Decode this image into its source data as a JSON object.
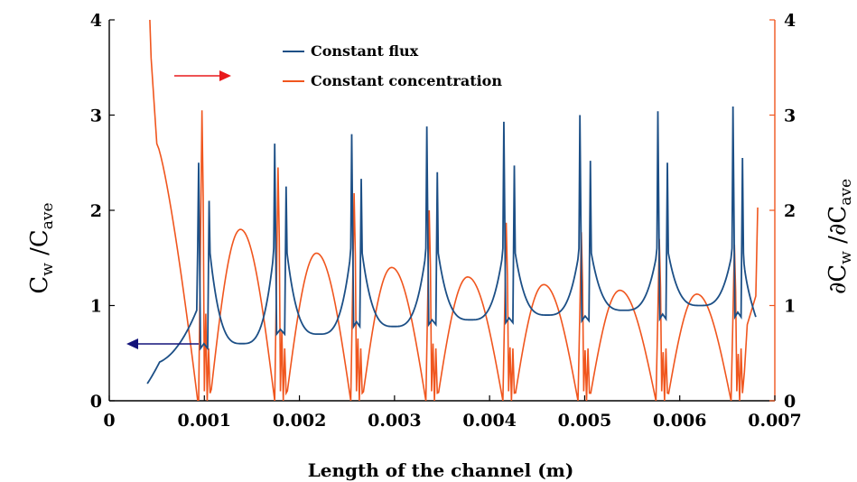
{
  "chart_data": {
    "type": "line",
    "xlabel": "Length of the channel (m)",
    "ylabel_left": {
      "main": "C",
      "sub1": "w",
      "mid": " /C",
      "sub2": "ave"
    },
    "ylabel_right": {
      "main": "∂C",
      "sub1": "w",
      "mid": " /∂C",
      "sub2": "ave"
    },
    "xlim": [
      0,
      0.007
    ],
    "ylim_left": [
      0,
      4
    ],
    "ylim_right": [
      0,
      4
    ],
    "x_ticks": [
      "0",
      "0.001",
      "0.002",
      "0.003",
      "0.004",
      "0.005",
      "0.006",
      "0.007"
    ],
    "y_ticks_left": [
      "0",
      "1",
      "2",
      "3",
      "4"
    ],
    "y_ticks_right": [
      "0",
      "1",
      "2",
      "3",
      "4"
    ],
    "grid": false,
    "legend_position": "top-center",
    "series": [
      {
        "name": "Constant flux",
        "axis": "left",
        "color": "#1c4f86",
        "x_start": 0.0004,
        "x_end": 0.0068,
        "start_value": 0.18,
        "cell_peaks": [
          {
            "x_left": 0.00094,
            "x_right": 0.00105,
            "peak_left": 2.5,
            "peak_right": 2.1,
            "min_between": 0.55
          },
          {
            "x_left": 0.00174,
            "x_right": 0.00186,
            "peak_left": 2.7,
            "peak_right": 2.25,
            "min_between": 0.7
          },
          {
            "x_left": 0.00255,
            "x_right": 0.00265,
            "peak_left": 2.8,
            "peak_right": 2.33,
            "min_between": 0.78
          },
          {
            "x_left": 0.00334,
            "x_right": 0.00345,
            "peak_left": 2.88,
            "peak_right": 2.4,
            "min_between": 0.8
          },
          {
            "x_left": 0.00415,
            "x_right": 0.00426,
            "peak_left": 2.93,
            "peak_right": 2.47,
            "min_between": 0.82
          },
          {
            "x_left": 0.00495,
            "x_right": 0.00506,
            "peak_left": 3.0,
            "peak_right": 2.52,
            "min_between": 0.84
          },
          {
            "x_left": 0.00577,
            "x_right": 0.00587,
            "peak_left": 3.04,
            "peak_right": 2.5,
            "min_between": 0.86
          },
          {
            "x_left": 0.00656,
            "x_right": 0.00666,
            "peak_left": 3.09,
            "peak_right": 2.55,
            "min_between": 0.88
          }
        ],
        "valley_minima": [
          0.6,
          0.7,
          0.78,
          0.85,
          0.9,
          0.95,
          1.0
        ],
        "end_value": 0.88
      },
      {
        "name": "Constant concentration",
        "axis": "right",
        "color": "#f0561e",
        "x_start": 0.00042,
        "x_end": 0.00682,
        "start_value": 4.0,
        "cell_peaks": [
          {
            "x": 0.00098,
            "peak": 3.05
          },
          {
            "x": 0.00178,
            "peak": 2.45
          },
          {
            "x": 0.00258,
            "peak": 2.18
          },
          {
            "x": 0.00337,
            "peak": 2.0
          },
          {
            "x": 0.00418,
            "peak": 1.87
          },
          {
            "x": 0.00497,
            "peak": 1.77
          },
          {
            "x": 0.00579,
            "peak": 1.7
          },
          {
            "x": 0.00658,
            "peak": 1.64
          }
        ],
        "valley_maxima": [
          {
            "x": 0.00138,
            "y": 1.8
          },
          {
            "x": 0.00218,
            "y": 1.55
          },
          {
            "x": 0.00297,
            "y": 1.4
          },
          {
            "x": 0.00377,
            "y": 1.3
          },
          {
            "x": 0.00457,
            "y": 1.22
          },
          {
            "x": 0.00537,
            "y": 1.16
          },
          {
            "x": 0.00618,
            "y": 1.12
          }
        ],
        "end_value": 2.03
      }
    ],
    "annotations": [
      {
        "kind": "arrow",
        "direction": "right",
        "color": "#e8191b",
        "meaning": "points to right axis"
      },
      {
        "kind": "arrow",
        "direction": "left",
        "color": "#13137a",
        "meaning": "points to left axis"
      }
    ]
  }
}
